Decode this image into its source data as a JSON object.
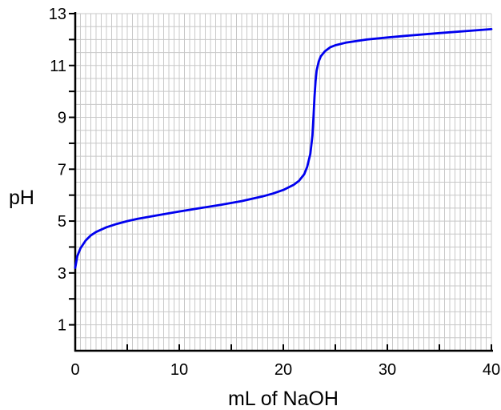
{
  "chart_data": {
    "type": "line",
    "title": "",
    "xlabel": "mL of NaOH",
    "ylabel": "pH",
    "xlim": [
      0,
      40
    ],
    "ylim": [
      0,
      13
    ],
    "x_ticks": [
      0,
      10,
      20,
      30,
      40
    ],
    "y_ticks": [
      1,
      3,
      5,
      7,
      9,
      11,
      13
    ],
    "grid": true,
    "legend": "none",
    "colors": {
      "line": "#0000ee",
      "grid": "#c8c8c8",
      "axis": "#000000"
    },
    "series": [
      {
        "x": [
          0,
          0.2,
          0.5,
          1,
          1.5,
          2,
          3,
          4,
          5,
          6,
          8,
          10,
          12,
          14,
          16,
          18,
          19,
          20,
          21,
          21.5,
          22,
          22.3,
          22.6,
          22.8,
          22.9,
          23,
          23.1,
          23.2,
          23.4,
          23.6,
          24,
          24.5,
          25,
          26,
          28,
          30,
          32,
          35,
          38,
          40
        ],
        "y": [
          3.2,
          3.65,
          3.95,
          4.25,
          4.45,
          4.58,
          4.76,
          4.89,
          5.0,
          5.09,
          5.23,
          5.37,
          5.5,
          5.63,
          5.77,
          5.95,
          6.06,
          6.2,
          6.4,
          6.55,
          6.8,
          7.1,
          7.6,
          8.3,
          9.0,
          9.8,
          10.4,
          10.8,
          11.15,
          11.35,
          11.55,
          11.7,
          11.78,
          11.88,
          12.0,
          12.08,
          12.15,
          12.25,
          12.34,
          12.4
        ]
      }
    ]
  }
}
